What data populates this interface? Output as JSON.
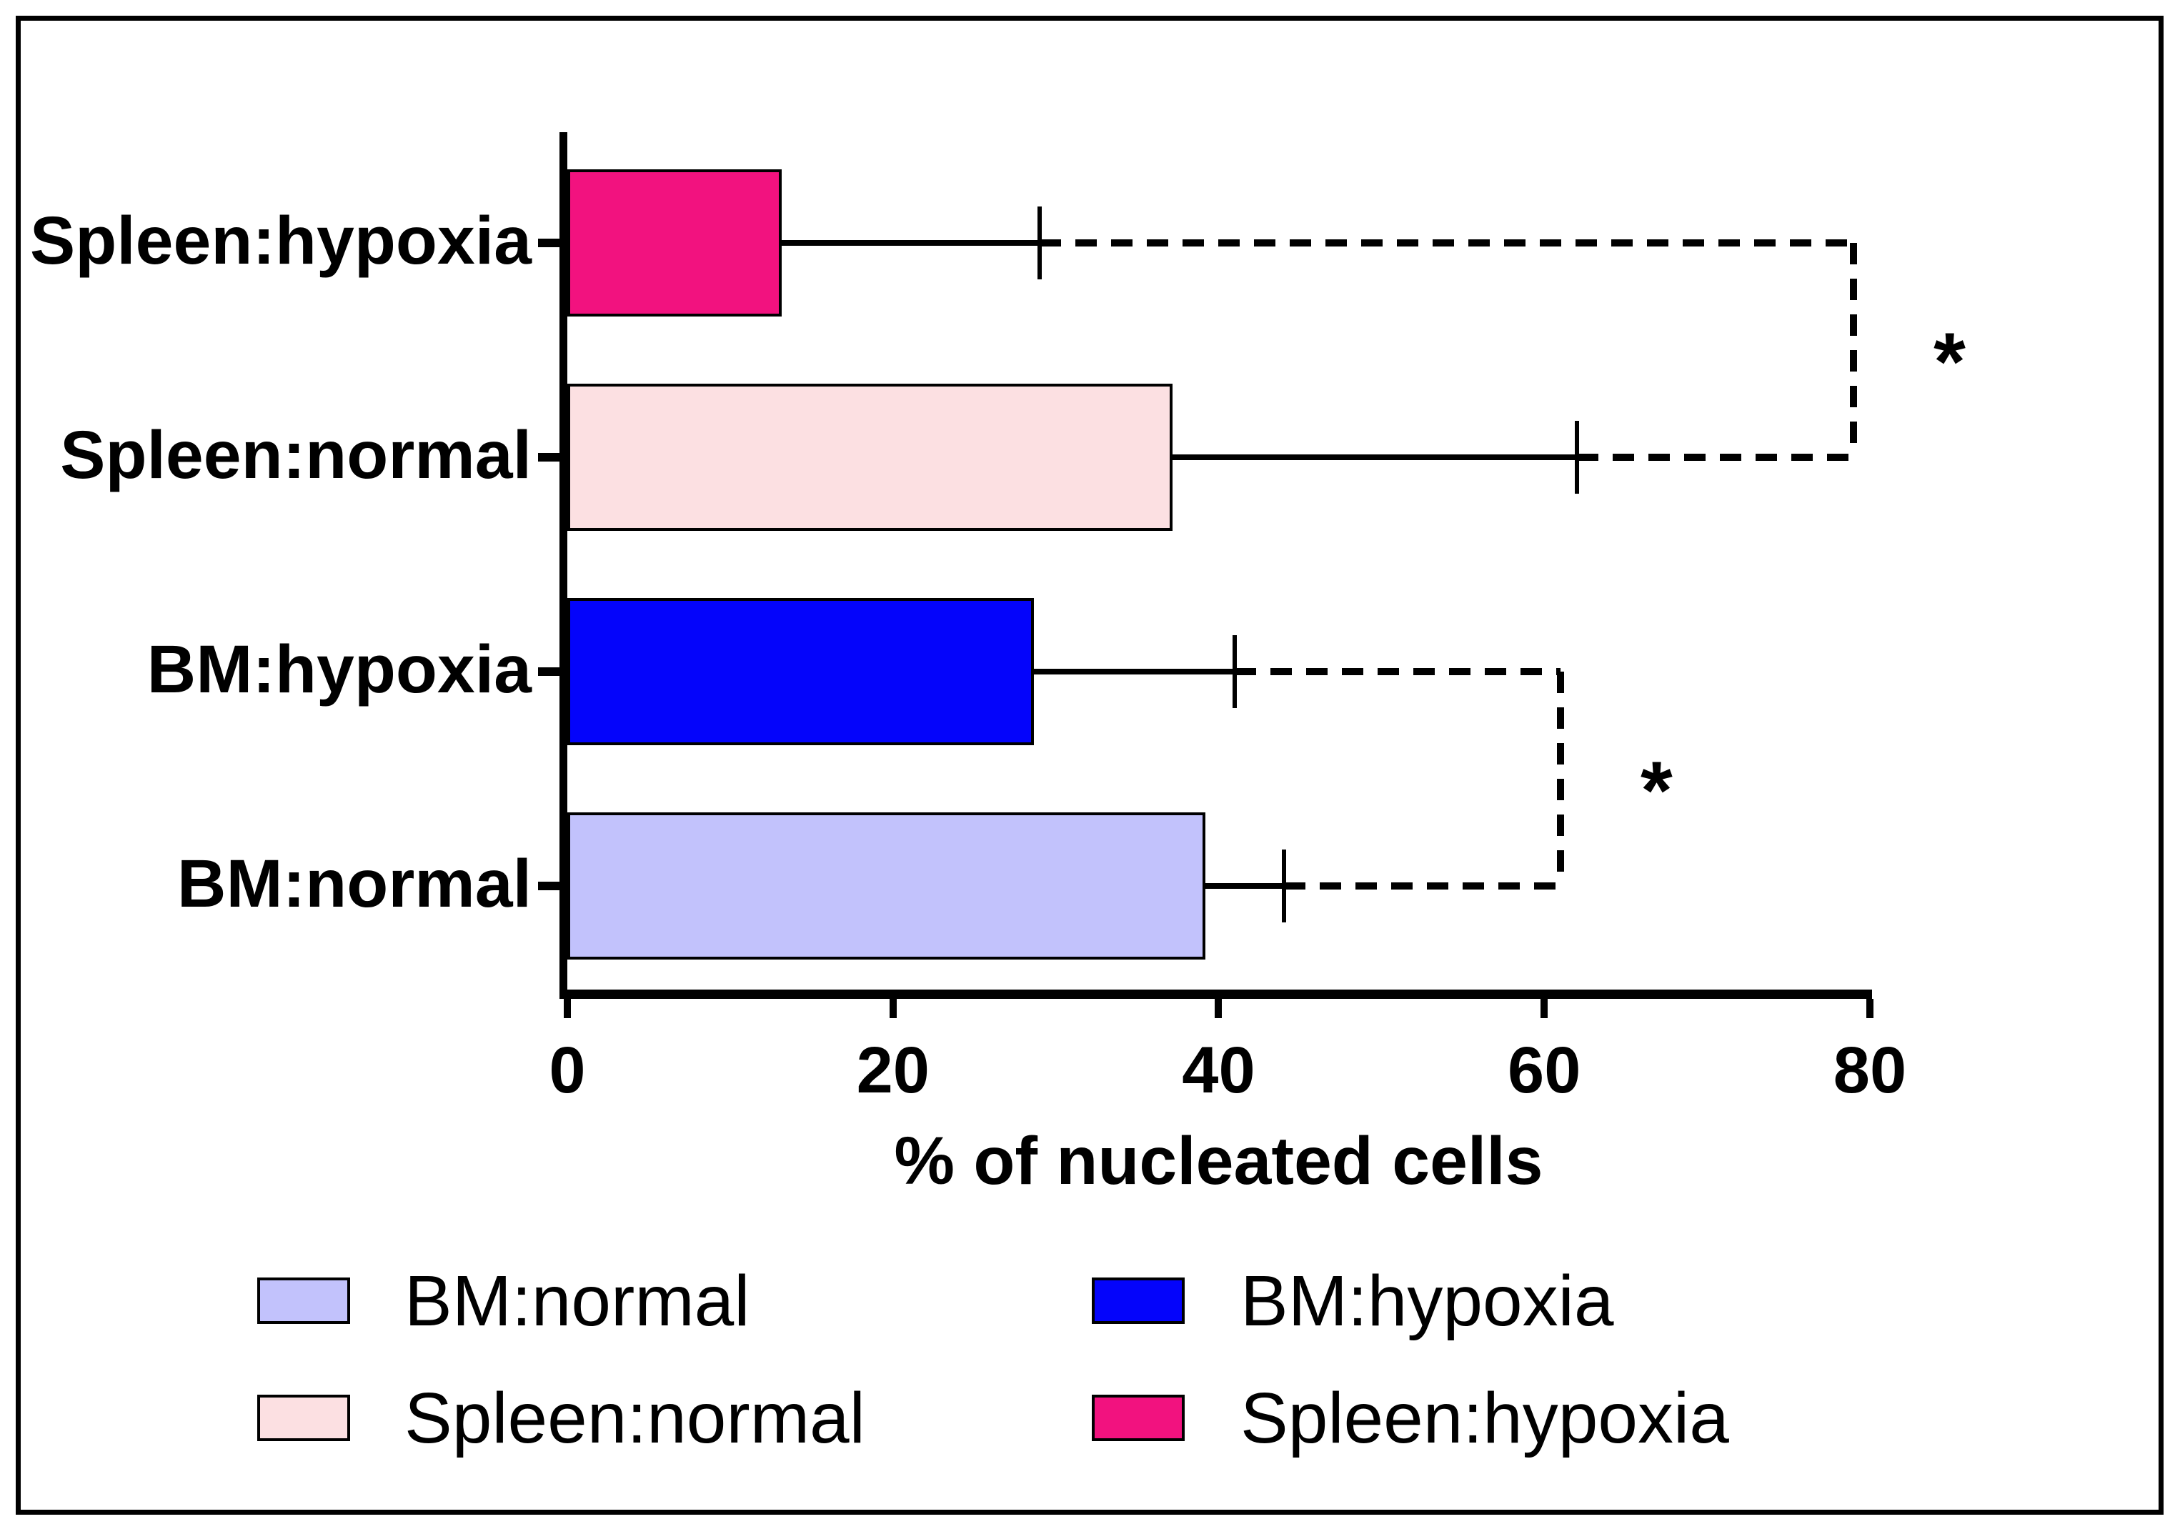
{
  "chart_data": {
    "type": "bar",
    "orientation": "horizontal",
    "title": "",
    "xlabel": "% of nucleated cells",
    "ylabel": "",
    "xlim": [
      0,
      80
    ],
    "xticks": [
      0,
      20,
      40,
      60,
      80
    ],
    "xtick_labels": [
      "0",
      "20",
      "40",
      "60",
      "80"
    ],
    "grid": false,
    "legend_position": "bottom",
    "bars": [
      {
        "label": "Spleen:hypoxia",
        "value": 13,
        "whisker_end": 29,
        "color": "#F2127F"
      },
      {
        "label": "Spleen:normal",
        "value": 37,
        "whisker_end": 62,
        "color": "#FCE0E2"
      },
      {
        "label": "BM:hypoxia",
        "value": 28.5,
        "whisker_end": 41,
        "color": "#0404FB"
      },
      {
        "label": "BM:normal",
        "value": 39,
        "whisker_end": 44,
        "color": "#C2C2FC"
      }
    ],
    "error_bars": "upper whiskers (mean + SD)",
    "significance": [
      {
        "between": [
          "Spleen:hypoxia",
          "Spleen:normal"
        ],
        "marker": "*",
        "bracket_x": 79
      },
      {
        "between": [
          "BM:hypoxia",
          "BM:normal"
        ],
        "marker": "*",
        "bracket_x": 61
      }
    ]
  },
  "legend": {
    "items": [
      {
        "label": "BM:normal",
        "color": "#C2C2FC"
      },
      {
        "label": "BM:hypoxia",
        "color": "#0404FB"
      },
      {
        "label": "Spleen:normal",
        "color": "#FCE0E2"
      },
      {
        "label": "Spleen:hypoxia",
        "color": "#F2127F"
      }
    ]
  },
  "colors": {
    "axis": "#000000",
    "text": "#000000",
    "background": "#FFFFFF",
    "frame": "#000000"
  }
}
